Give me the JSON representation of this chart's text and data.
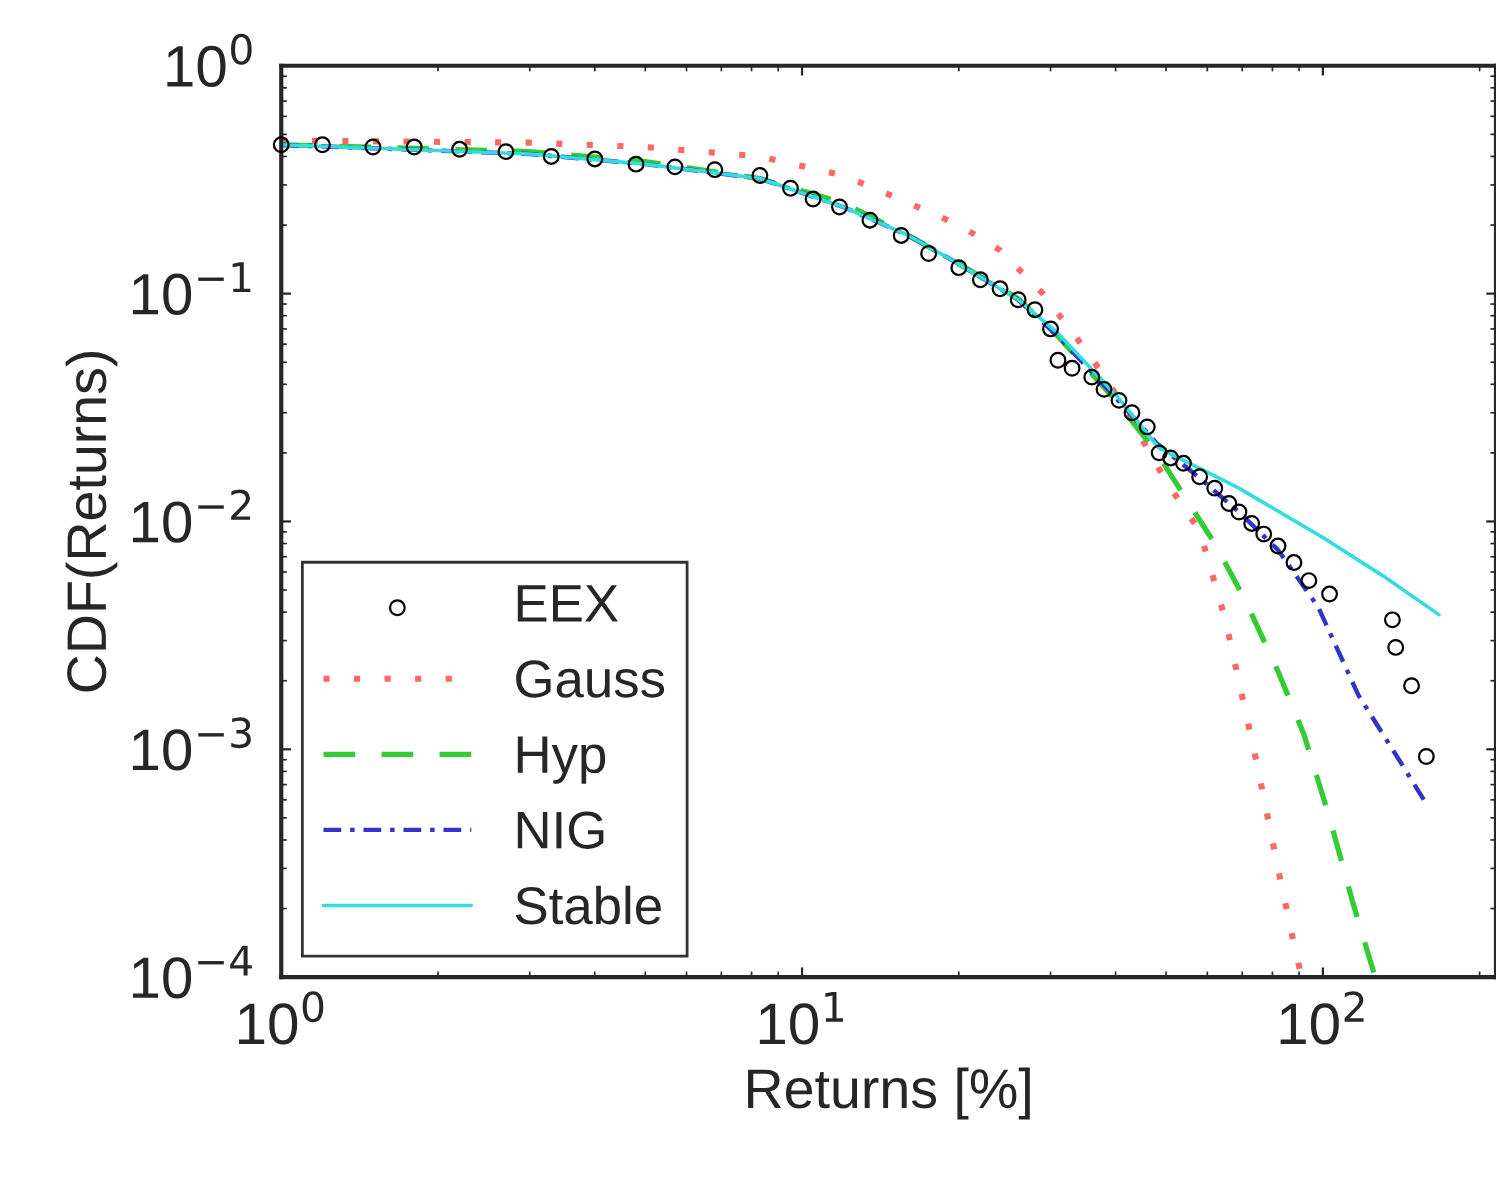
{
  "chart_data": {
    "type": "line",
    "xlabel": "Returns [%]",
    "ylabel": "CDF(Returns)",
    "log": "xy",
    "xlim": [
      1,
      215
    ],
    "ylim": [
      0.0001,
      1
    ],
    "xticks": [
      {
        "value": 1,
        "label": "10$^{0}$"
      },
      {
        "value": 10,
        "label": "10$^{1}$"
      },
      {
        "value": 100,
        "label": "10$^{2}$"
      }
    ],
    "yticks": [
      {
        "value": 0.0001,
        "label": "10$^{−4}$"
      },
      {
        "value": 0.001,
        "label": "10$^{−3}$"
      },
      {
        "value": 0.01,
        "label": "10$^{−2}$"
      },
      {
        "value": 0.1,
        "label": "10$^{−1}$"
      },
      {
        "value": 1,
        "label": "10$^{0}$"
      }
    ],
    "legend": "bottom left",
    "grid": false,
    "series": [
      {
        "name": "EEX",
        "type": "scatter",
        "marker": "circle",
        "color": "#000000",
        "x": [
          1,
          1.2,
          1.5,
          1.8,
          2.2,
          2.7,
          3.3,
          4,
          4.8,
          5.7,
          6.8,
          8.3,
          9.5,
          10.5,
          11.8,
          13.5,
          15.5,
          17.5,
          20,
          22,
          24,
          26,
          28,
          30,
          31,
          33,
          36,
          38,
          40.6,
          43,
          46,
          48.5,
          51,
          54,
          58,
          62,
          66,
          69,
          73,
          77,
          82,
          88,
          94,
          103,
          136,
          138,
          148,
          158
        ],
        "values": [
          0.45,
          0.45,
          0.44,
          0.44,
          0.43,
          0.42,
          0.4,
          0.39,
          0.37,
          0.36,
          0.35,
          0.33,
          0.29,
          0.26,
          0.24,
          0.21,
          0.18,
          0.15,
          0.13,
          0.115,
          0.105,
          0.094,
          0.085,
          0.07,
          0.051,
          0.047,
          0.043,
          0.038,
          0.034,
          0.03,
          0.026,
          0.02,
          0.019,
          0.018,
          0.0157,
          0.014,
          0.012,
          0.011,
          0.0098,
          0.0088,
          0.0078,
          0.0066,
          0.0055,
          0.0048,
          0.0037,
          0.0028,
          0.0019,
          0.00093
        ]
      },
      {
        "name": "Gauss",
        "line_style": "dotted",
        "color": "#ff6666",
        "x": [
          1,
          3,
          5,
          8.3,
          12,
          15.4,
          20,
          24,
          29,
          34,
          39,
          44,
          50,
          58,
          65,
          75,
          82,
          88,
          91
        ],
        "values": [
          0.47,
          0.46,
          0.44,
          0.4,
          0.33,
          0.26,
          0.2,
          0.155,
          0.1,
          0.062,
          0.04,
          0.025,
          0.015,
          0.0091,
          0.0037,
          0.00083,
          0.0003,
          0.00014,
          0.0001
        ]
      },
      {
        "name": "Hyp",
        "line_style": "dashed",
        "color": "#33cc33",
        "x": [
          1,
          3,
          5,
          8.3,
          12,
          16,
          20,
          26,
          31,
          40,
          48,
          54,
          62,
          71,
          82,
          92,
          103,
          114,
          126
        ],
        "values": [
          0.45,
          0.42,
          0.38,
          0.32,
          0.25,
          0.18,
          0.135,
          0.095,
          0.065,
          0.034,
          0.02,
          0.0131,
          0.008,
          0.0045,
          0.0022,
          0.00116,
          0.0005,
          0.000215,
          0.0001
        ]
      },
      {
        "name": "NIG",
        "line_style": "dashdot",
        "color": "#3333cc",
        "x": [
          1,
          3,
          5,
          8.3,
          12,
          16,
          20,
          26,
          31,
          40,
          48,
          58,
          69,
          82,
          98,
          117,
          140,
          157
        ],
        "values": [
          0.45,
          0.41,
          0.37,
          0.32,
          0.24,
          0.18,
          0.135,
          0.094,
          0.065,
          0.035,
          0.022,
          0.0155,
          0.011,
          0.0075,
          0.0042,
          0.00173,
          0.0009,
          0.00059
        ]
      },
      {
        "name": "Stable",
        "line_style": "solid",
        "color": "#33dddd",
        "x": [
          1,
          3,
          5,
          8.3,
          12,
          16,
          20,
          26,
          31,
          40,
          48.5,
          69,
          100,
          130,
          167
        ],
        "values": [
          0.45,
          0.41,
          0.37,
          0.32,
          0.24,
          0.18,
          0.135,
          0.094,
          0.067,
          0.036,
          0.021,
          0.014,
          0.0085,
          0.0058,
          0.0039
        ]
      }
    ]
  }
}
